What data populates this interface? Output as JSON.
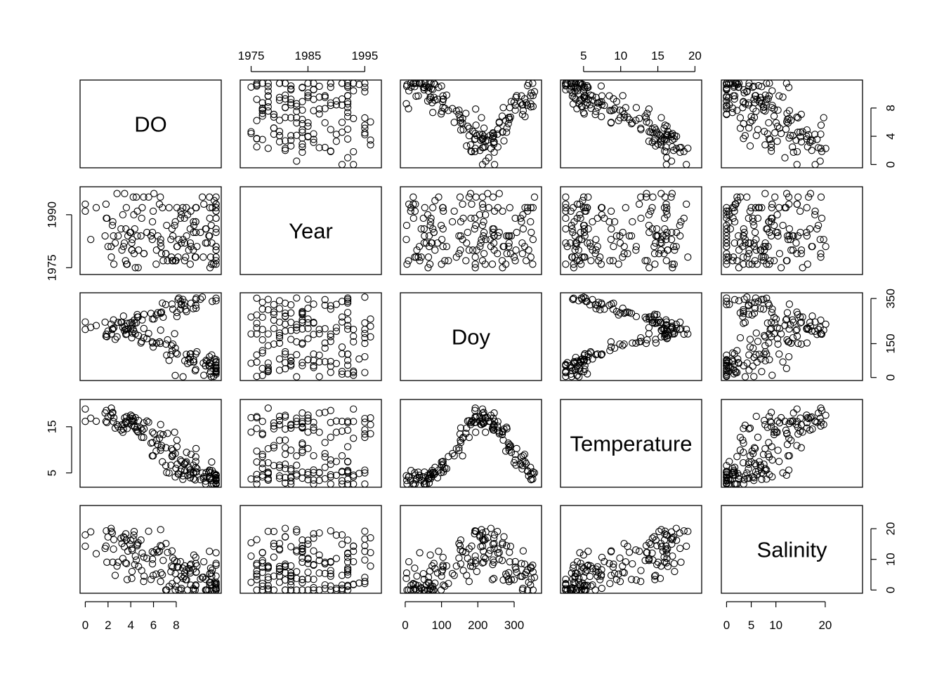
{
  "chart_data": {
    "type": "scatter",
    "variables": [
      "DO",
      "Year",
      "Doy",
      "Temperature",
      "Salinity"
    ],
    "ranges": {
      "DO": [
        0,
        11.5
      ],
      "Year": [
        1974,
        1997
      ],
      "Doy": [
        1,
        361
      ],
      "Temperature": [
        2.6,
        20.2
      ],
      "Salinity": [
        0,
        26.5
      ]
    },
    "ticks": {
      "DO": {
        "bottom": [
          "0",
          "2",
          "4",
          "6",
          "8"
        ],
        "right": [
          "0",
          "4",
          "8"
        ]
      },
      "Year": {
        "top": [
          "1975",
          "1985",
          "1995"
        ],
        "left": [
          "1975",
          "1990"
        ]
      },
      "Doy": {
        "bottom": [
          "0",
          "100",
          "200",
          "300"
        ],
        "right": [
          "0",
          "150",
          "350"
        ]
      },
      "Temperature": {
        "top": [
          "5",
          "10",
          "15",
          "20"
        ],
        "left": [
          "5",
          "15"
        ]
      },
      "Salinity": {
        "bottom": [
          "0",
          "5",
          "10",
          "20"
        ],
        "right": [
          "0",
          "10",
          "20"
        ]
      }
    },
    "n_points": 160,
    "grid": false,
    "legend": "none"
  }
}
